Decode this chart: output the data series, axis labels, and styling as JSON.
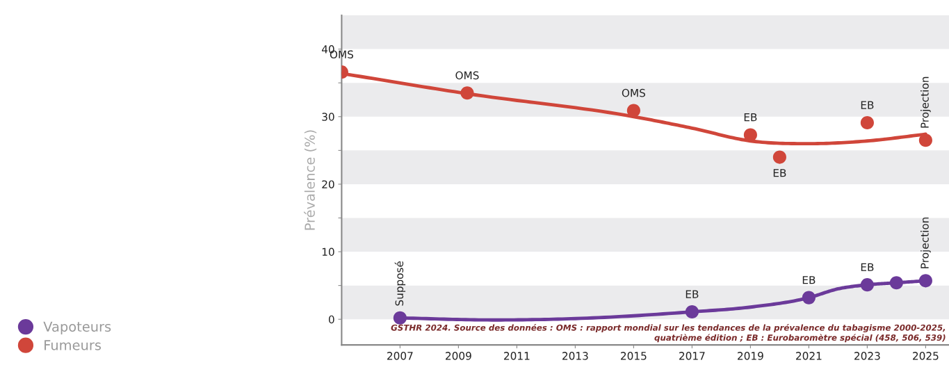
{
  "chart_data": {
    "type": "scatter",
    "ylabel": "Prévalence (%)",
    "xlim": [
      2005,
      2025.8
    ],
    "ylim": [
      -3.8,
      45
    ],
    "xticks": [
      2007,
      2009,
      2011,
      2013,
      2015,
      2017,
      2019,
      2021,
      2023,
      2025
    ],
    "yticks": [
      0,
      {
        "value": 5,
        "label": null
      },
      10,
      {
        "value": 15,
        "label": null
      },
      20,
      {
        "value": 25,
        "label": null
      },
      30,
      {
        "value": 35,
        "label": null
      },
      40
    ],
    "grid": false,
    "legend": "bottom left",
    "marker": "circle",
    "series": [
      {
        "name": "Vapoteurs",
        "color": "#6b3a9a",
        "x": [
          2007,
          2017,
          2021,
          2023,
          2024,
          2025
        ],
        "values": [
          0.2,
          1.1,
          3.2,
          5.1,
          5.4,
          5.7
        ]
      },
      {
        "name": "Fumeurs",
        "color": "#d0463a",
        "x": [
          2005,
          2009.3,
          2015,
          2019,
          2020,
          2023,
          2025
        ],
        "values": [
          36.6,
          33.5,
          30.9,
          27.3,
          24.0,
          29.1,
          26.5
        ]
      },
      {
        "type": "line",
        "marker": "none",
        "color": "#d0463a",
        "x": [
          2005,
          2009.3,
          2015,
          2017,
          2019,
          2021,
          2023,
          2025
        ],
        "values": [
          36.4,
          33.4,
          30.0,
          28.3,
          26.4,
          26.0,
          26.4,
          27.4
        ]
      },
      {
        "type": "line",
        "marker": "none",
        "color": "#6b3a9a",
        "x": [
          2007,
          2010,
          2013,
          2017,
          2019,
          2021,
          2022,
          2023,
          2024,
          2025
        ],
        "values": [
          0.2,
          -0.1,
          0.1,
          1.1,
          1.8,
          3.2,
          4.5,
          5.1,
          5.4,
          5.7
        ]
      }
    ],
    "bands": [
      {
        "axis": "y",
        "from": 0,
        "to": 5,
        "color": "#ebebed"
      },
      {
        "axis": "y",
        "from": 10,
        "to": 15,
        "color": "#ebebed"
      },
      {
        "axis": "y",
        "from": 20,
        "to": 25,
        "color": "#ebebed"
      },
      {
        "axis": "y",
        "from": 30,
        "to": 35,
        "color": "#ebebed"
      },
      {
        "axis": "y",
        "from": 40,
        "to": 45,
        "color": "#ebebed"
      }
    ],
    "annotations": [
      {
        "text": "OMS",
        "x": 2005,
        "y": 36.6
      },
      {
        "text": "OMS",
        "x": 2009.3,
        "y": 33.5
      },
      {
        "text": "OMS",
        "x": 2015,
        "y": 30.9
      },
      {
        "text": "EB",
        "x": 2019,
        "y": 27.3
      },
      {
        "text": "EB",
        "x": 2020,
        "y": 24.0
      },
      {
        "text": "EB",
        "x": 2023,
        "y": 29.1
      },
      {
        "text": "Projection",
        "x": 2025,
        "y": 26.5
      },
      {
        "text": "Supposé",
        "x": 2007,
        "y": 0.2
      },
      {
        "text": "EB",
        "x": 2017,
        "y": 1.1
      },
      {
        "text": "EB",
        "x": 2021,
        "y": 3.2
      },
      {
        "text": "EB",
        "x": 2023,
        "y": 5.1
      },
      {
        "text": "Projection",
        "x": 2025,
        "y": 5.7
      },
      "GSTHR 2024. Source des données : OMS : rapport mondial sur les tendances de la prévalence du tabagisme 2000-2025,\nquatrième édition ; EB : Eurobaromètre spécial (458, 506, 539)"
    ]
  }
}
